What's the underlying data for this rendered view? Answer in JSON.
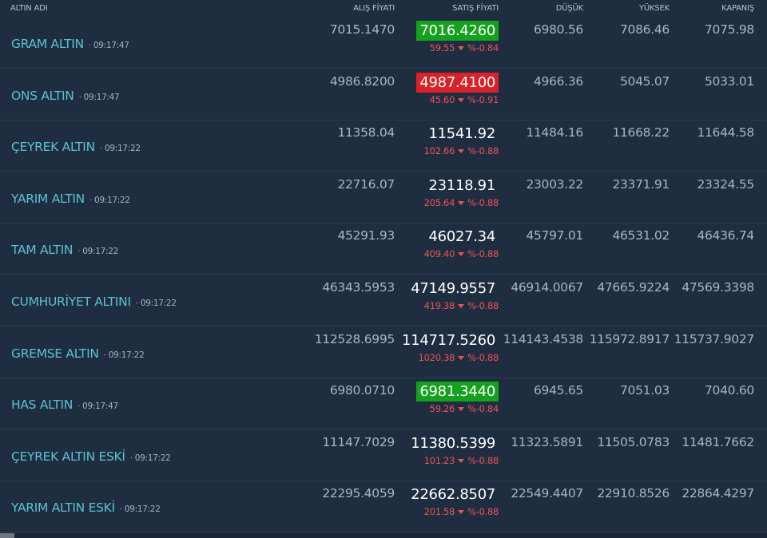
{
  "columns": {
    "name": "ALTIN ADI",
    "buy": "ALIŞ FİYATI",
    "sell": "SATIŞ FİYATI",
    "low": "DÜŞÜK",
    "high": "YÜKSEK",
    "close": "KAPANIŞ"
  },
  "colors": {
    "background": "#1f2d40",
    "up": "#14a21e",
    "down": "#d92127",
    "change": "#e95455",
    "name": "#5cc2cf"
  },
  "rows": [
    {
      "name": "GRAM ALTIN",
      "time": "· 09:17:47",
      "buy": "7015.1470",
      "sell": "7016.4260",
      "sell_highlight": "up",
      "change": "59.55",
      "pct": "%-0.84",
      "low": "6980.56",
      "high": "7086.46",
      "close": "7075.98"
    },
    {
      "name": "ONS ALTIN",
      "time": "· 09:17:47",
      "buy": "4986.8200",
      "sell": "4987.4100",
      "sell_highlight": "down",
      "change": "45.60",
      "pct": "%-0.91",
      "low": "4966.36",
      "high": "5045.07",
      "close": "5033.01"
    },
    {
      "name": "ÇEYREK ALTIN",
      "time": "· 09:17:22",
      "buy": "11358.04",
      "sell": "11541.92",
      "sell_highlight": "none",
      "change": "102.66",
      "pct": "%-0.88",
      "low": "11484.16",
      "high": "11668.22",
      "close": "11644.58"
    },
    {
      "name": "YARIM ALTIN",
      "time": "· 09:17:22",
      "buy": "22716.07",
      "sell": "23118.91",
      "sell_highlight": "none",
      "change": "205.64",
      "pct": "%-0.88",
      "low": "23003.22",
      "high": "23371.91",
      "close": "23324.55"
    },
    {
      "name": "TAM ALTIN",
      "time": "· 09:17:22",
      "buy": "45291.93",
      "sell": "46027.34",
      "sell_highlight": "none",
      "change": "409.40",
      "pct": "%-0.88",
      "low": "45797.01",
      "high": "46531.02",
      "close": "46436.74"
    },
    {
      "name": "CUMHURİYET ALTINI",
      "time": "· 09:17:22",
      "buy": "46343.5953",
      "sell": "47149.9557",
      "sell_highlight": "none",
      "change": "419.38",
      "pct": "%-0.88",
      "low": "46914.0067",
      "high": "47665.9224",
      "close": "47569.3398"
    },
    {
      "name": "GREMSE ALTIN",
      "time": "· 09:17:22",
      "buy": "112528.6995",
      "sell": "114717.5260",
      "sell_highlight": "none",
      "change": "1020.38",
      "pct": "%-0.88",
      "low": "114143.4538",
      "high": "115972.8917",
      "close": "115737.9027"
    },
    {
      "name": "HAS ALTIN",
      "time": "· 09:17:47",
      "buy": "6980.0710",
      "sell": "6981.3440",
      "sell_highlight": "up",
      "change": "59.26",
      "pct": "%-0.84",
      "low": "6945.65",
      "high": "7051.03",
      "close": "7040.60"
    },
    {
      "name": "ÇEYREK ALTIN ESKİ",
      "time": "· 09:17:22",
      "buy": "11147.7029",
      "sell": "11380.5399",
      "sell_highlight": "none",
      "change": "101.23",
      "pct": "%-0.88",
      "low": "11323.5891",
      "high": "11505.0783",
      "close": "11481.7662"
    },
    {
      "name": "YARIM ALTIN ESKİ",
      "time": "· 09:17:22",
      "buy": "22295.4059",
      "sell": "22662.8507",
      "sell_highlight": "none",
      "change": "201.58",
      "pct": "%-0.88",
      "low": "22549.4407",
      "high": "22910.8526",
      "close": "22864.4297"
    }
  ]
}
